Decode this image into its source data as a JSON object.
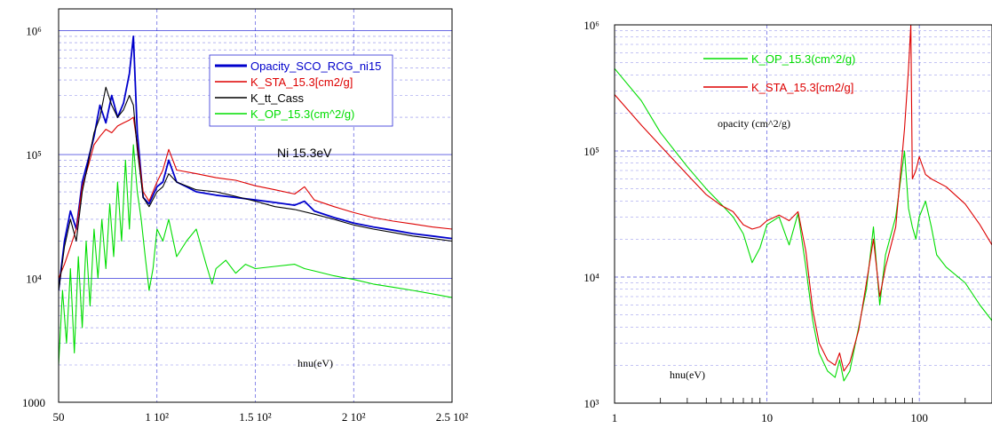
{
  "chart_data": [
    {
      "type": "line",
      "title": "",
      "xlabel": "hnu(eV)",
      "ylabel": "",
      "annotation": "Ni  15.3eV",
      "x_scale": "linear",
      "y_scale": "log",
      "xlim": [
        50,
        250
      ],
      "ylim": [
        1000,
        1500000
      ],
      "grid": true,
      "legend_position": "top-right",
      "x_tick_labels": [
        "50",
        "1 10²",
        "1.5 10²",
        "2 10²",
        "2.5 10²"
      ],
      "x_tick_values": [
        50,
        100,
        150,
        200,
        250
      ],
      "y_tick_labels": [
        "1000",
        "10⁴",
        "10⁵",
        "10⁶"
      ],
      "y_tick_values": [
        1000,
        10000,
        100000,
        1000000
      ],
      "series": [
        {
          "name": "Opacity_SCO_RCG_ni15",
          "color": "#0000cc",
          "points": [
            [
              50,
              8000
            ],
            [
              53,
              20000
            ],
            [
              56,
              35000
            ],
            [
              59,
              25000
            ],
            [
              62,
              60000
            ],
            [
              65,
              90000
            ],
            [
              68,
              140000
            ],
            [
              71,
              250000
            ],
            [
              74,
              180000
            ],
            [
              77,
              300000
            ],
            [
              80,
              200000
            ],
            [
              83,
              260000
            ],
            [
              86,
              450000
            ],
            [
              88,
              900000
            ],
            [
              90,
              150000
            ],
            [
              93,
              45000
            ],
            [
              96,
              40000
            ],
            [
              100,
              55000
            ],
            [
              103,
              60000
            ],
            [
              106,
              90000
            ],
            [
              110,
              60000
            ],
            [
              115,
              55000
            ],
            [
              120,
              50000
            ],
            [
              130,
              47000
            ],
            [
              140,
              45000
            ],
            [
              150,
              43000
            ],
            [
              160,
              41000
            ],
            [
              170,
              39000
            ],
            [
              175,
              42000
            ],
            [
              180,
              35000
            ],
            [
              190,
              31000
            ],
            [
              200,
              28000
            ],
            [
              210,
              26000
            ],
            [
              220,
              24500
            ],
            [
              230,
              23000
            ],
            [
              240,
              22000
            ],
            [
              250,
              21000
            ]
          ]
        },
        {
          "name": "K_STA_15.3[cm2/g]",
          "color": "#dd0000",
          "points": [
            [
              50,
              10000
            ],
            [
              53,
              13000
            ],
            [
              56,
              18000
            ],
            [
              59,
              25000
            ],
            [
              62,
              55000
            ],
            [
              65,
              80000
            ],
            [
              68,
              120000
            ],
            [
              71,
              140000
            ],
            [
              74,
              160000
            ],
            [
              77,
              150000
            ],
            [
              80,
              170000
            ],
            [
              83,
              180000
            ],
            [
              86,
              190000
            ],
            [
              88,
              200000
            ],
            [
              90,
              120000
            ],
            [
              93,
              50000
            ],
            [
              96,
              42000
            ],
            [
              100,
              60000
            ],
            [
              103,
              75000
            ],
            [
              106,
              110000
            ],
            [
              110,
              75000
            ],
            [
              120,
              70000
            ],
            [
              130,
              65000
            ],
            [
              140,
              62000
            ],
            [
              150,
              56000
            ],
            [
              160,
              52000
            ],
            [
              170,
              48000
            ],
            [
              175,
              55000
            ],
            [
              180,
              43000
            ],
            [
              190,
              38000
            ],
            [
              200,
              34000
            ],
            [
              210,
              31000
            ],
            [
              220,
              29000
            ],
            [
              230,
              27500
            ],
            [
              240,
              26000
            ],
            [
              250,
              25000
            ]
          ]
        },
        {
          "name": "K_tt_Cass",
          "color": "#000000",
          "points": [
            [
              50,
              8000
            ],
            [
              53,
              18000
            ],
            [
              56,
              30000
            ],
            [
              59,
              20000
            ],
            [
              62,
              50000
            ],
            [
              65,
              85000
            ],
            [
              68,
              150000
            ],
            [
              71,
              200000
            ],
            [
              74,
              350000
            ],
            [
              77,
              250000
            ],
            [
              80,
              200000
            ],
            [
              83,
              230000
            ],
            [
              86,
              300000
            ],
            [
              88,
              250000
            ],
            [
              90,
              110000
            ],
            [
              93,
              45000
            ],
            [
              96,
              38000
            ],
            [
              100,
              50000
            ],
            [
              103,
              55000
            ],
            [
              106,
              70000
            ],
            [
              110,
              60000
            ],
            [
              120,
              52000
            ],
            [
              130,
              50000
            ],
            [
              140,
              46000
            ],
            [
              150,
              42000
            ],
            [
              160,
              38000
            ],
            [
              170,
              36000
            ],
            [
              180,
              33000
            ],
            [
              190,
              30000
            ],
            [
              200,
              27000
            ],
            [
              210,
              25000
            ],
            [
              220,
              23500
            ],
            [
              230,
              22000
            ],
            [
              240,
              21000
            ],
            [
              250,
              20000
            ]
          ]
        },
        {
          "name": "K_OP_15.3(cm^2/g)",
          "color": "#00dd00",
          "points": [
            [
              50,
              2000
            ],
            [
              52,
              8000
            ],
            [
              54,
              3000
            ],
            [
              56,
              12000
            ],
            [
              58,
              2500
            ],
            [
              60,
              15000
            ],
            [
              62,
              4000
            ],
            [
              64,
              20000
            ],
            [
              66,
              6000
            ],
            [
              68,
              25000
            ],
            [
              70,
              10000
            ],
            [
              72,
              30000
            ],
            [
              74,
              12000
            ],
            [
              76,
              40000
            ],
            [
              78,
              15000
            ],
            [
              80,
              60000
            ],
            [
              82,
              20000
            ],
            [
              84,
              90000
            ],
            [
              86,
              25000
            ],
            [
              88,
              120000
            ],
            [
              90,
              50000
            ],
            [
              92,
              30000
            ],
            [
              94,
              15000
            ],
            [
              96,
              8000
            ],
            [
              98,
              12000
            ],
            [
              100,
              25000
            ],
            [
              103,
              20000
            ],
            [
              106,
              30000
            ],
            [
              110,
              15000
            ],
            [
              115,
              20000
            ],
            [
              120,
              25000
            ],
            [
              125,
              13000
            ],
            [
              128,
              9000
            ],
            [
              130,
              12000
            ],
            [
              135,
              14000
            ],
            [
              140,
              11000
            ],
            [
              145,
              13000
            ],
            [
              150,
              12000
            ],
            [
              160,
              12500
            ],
            [
              170,
              13000
            ],
            [
              175,
              12000
            ],
            [
              180,
              11500
            ],
            [
              190,
              10500
            ],
            [
              200,
              9800
            ],
            [
              210,
              9000
            ],
            [
              220,
              8500
            ],
            [
              230,
              8000
            ],
            [
              240,
              7500
            ],
            [
              250,
              7000
            ]
          ]
        }
      ]
    },
    {
      "type": "line",
      "title": "",
      "xlabel": "hnu(eV)",
      "ylabel": "",
      "annotation": "opacity (cm^2/g)",
      "x_scale": "log",
      "y_scale": "log",
      "xlim": [
        1,
        300
      ],
      "ylim": [
        1000,
        1000000
      ],
      "grid": true,
      "legend_position": "top-left",
      "x_tick_labels": [
        "1",
        "10",
        "100"
      ],
      "x_tick_values": [
        1,
        10,
        100
      ],
      "y_tick_labels": [
        "10³",
        "10⁴",
        "10⁵",
        "10⁶"
      ],
      "y_tick_values": [
        1000,
        10000,
        100000,
        1000000
      ],
      "series": [
        {
          "name": "K_OP_15.3(cm^2/g)",
          "color": "#00dd00",
          "points": [
            [
              1,
              450000
            ],
            [
              1.5,
              250000
            ],
            [
              2,
              140000
            ],
            [
              3,
              75000
            ],
            [
              4,
              50000
            ],
            [
              5,
              38000
            ],
            [
              6,
              30000
            ],
            [
              7,
              22000
            ],
            [
              8,
              13000
            ],
            [
              9,
              17000
            ],
            [
              10,
              26000
            ],
            [
              12,
              30000
            ],
            [
              14,
              18000
            ],
            [
              16,
              32000
            ],
            [
              18,
              12000
            ],
            [
              20,
              4500
            ],
            [
              22,
              2500
            ],
            [
              25,
              1800
            ],
            [
              28,
              1600
            ],
            [
              30,
              2200
            ],
            [
              32,
              1500
            ],
            [
              35,
              1800
            ],
            [
              40,
              4000
            ],
            [
              45,
              8000
            ],
            [
              50,
              25000
            ],
            [
              55,
              6000
            ],
            [
              60,
              15000
            ],
            [
              70,
              30000
            ],
            [
              80,
              100000
            ],
            [
              85,
              35000
            ],
            [
              90,
              25000
            ],
            [
              95,
              20000
            ],
            [
              100,
              30000
            ],
            [
              110,
              40000
            ],
            [
              120,
              25000
            ],
            [
              130,
              15000
            ],
            [
              150,
              12000
            ],
            [
              200,
              9000
            ],
            [
              250,
              6000
            ],
            [
              300,
              4500
            ]
          ]
        },
        {
          "name": "K_STA_15.3[cm2/g]",
          "color": "#dd0000",
          "points": [
            [
              1,
              280000
            ],
            [
              1.5,
              160000
            ],
            [
              2,
              110000
            ],
            [
              3,
              65000
            ],
            [
              4,
              45000
            ],
            [
              5,
              37000
            ],
            [
              6,
              33000
            ],
            [
              7,
              26000
            ],
            [
              8,
              24000
            ],
            [
              9,
              25000
            ],
            [
              10,
              28000
            ],
            [
              12,
              31000
            ],
            [
              14,
              28000
            ],
            [
              16,
              33000
            ],
            [
              18,
              16000
            ],
            [
              20,
              5500
            ],
            [
              22,
              3000
            ],
            [
              25,
              2200
            ],
            [
              28,
              2000
            ],
            [
              30,
              2500
            ],
            [
              32,
              1800
            ],
            [
              35,
              2100
            ],
            [
              40,
              3800
            ],
            [
              45,
              9000
            ],
            [
              50,
              20000
            ],
            [
              55,
              7000
            ],
            [
              60,
              12000
            ],
            [
              70,
              25000
            ],
            [
              80,
              150000
            ],
            [
              85,
              450000
            ],
            [
              88,
              1000000
            ],
            [
              90,
              60000
            ],
            [
              95,
              70000
            ],
            [
              100,
              90000
            ],
            [
              110,
              65000
            ],
            [
              120,
              60000
            ],
            [
              150,
              52000
            ],
            [
              200,
              38000
            ],
            [
              250,
              26000
            ],
            [
              300,
              18000
            ]
          ]
        }
      ]
    }
  ]
}
